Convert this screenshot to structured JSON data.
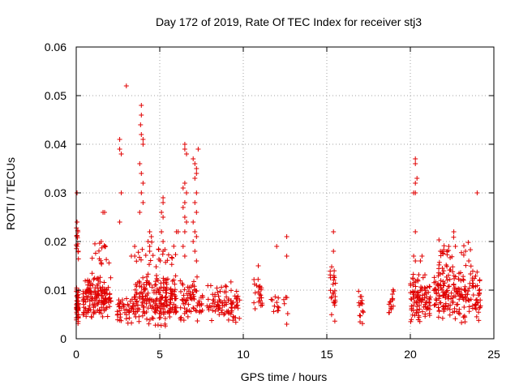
{
  "chart_data": {
    "type": "scatter",
    "title": "Day 172 of 2019, Rate Of TEC Index for receiver stj3",
    "xlabel": "GPS time / hours",
    "ylabel": "ROTI / TECUs",
    "xlim": [
      0,
      25
    ],
    "ylim": [
      0,
      0.06
    ],
    "xticks": [
      "0",
      "5",
      "10",
      "15",
      "20",
      "25"
    ],
    "yticks": [
      "0",
      "0.01",
      "0.02",
      "0.03",
      "0.04",
      "0.05",
      "0.06"
    ],
    "grid": true,
    "marker": "plus",
    "color": "#e00000",
    "clusters": [
      {
        "x_range": [
          0.0,
          0.15
        ],
        "y_range": [
          0.002,
          0.011
        ],
        "count": 45
      },
      {
        "x_range": [
          0.0,
          0.15
        ],
        "y_range": [
          0.013,
          0.025
        ],
        "count": 12
      },
      {
        "x_range": [
          0.4,
          2.1
        ],
        "y_range": [
          0.004,
          0.013
        ],
        "count": 150
      },
      {
        "x_range": [
          0.8,
          2.0
        ],
        "y_range": [
          0.013,
          0.021
        ],
        "count": 15
      },
      {
        "x_range": [
          2.4,
          3.4
        ],
        "y_range": [
          0.003,
          0.009
        ],
        "count": 40
      },
      {
        "x_range": [
          3.4,
          6.0
        ],
        "y_range": [
          0.002,
          0.014
        ],
        "count": 210
      },
      {
        "x_range": [
          3.6,
          6.0
        ],
        "y_range": [
          0.014,
          0.02
        ],
        "count": 25
      },
      {
        "x_range": [
          6.2,
          7.6
        ],
        "y_range": [
          0.003,
          0.013
        ],
        "count": 70
      },
      {
        "x_range": [
          7.8,
          9.8
        ],
        "y_range": [
          0.003,
          0.012
        ],
        "count": 90
      },
      {
        "x_range": [
          10.6,
          11.2
        ],
        "y_range": [
          0.005,
          0.013
        ],
        "count": 22
      },
      {
        "x_range": [
          11.6,
          12.8
        ],
        "y_range": [
          0.004,
          0.011
        ],
        "count": 16
      },
      {
        "x_range": [
          15.2,
          15.6
        ],
        "y_range": [
          0.003,
          0.016
        ],
        "count": 25
      },
      {
        "x_range": [
          16.9,
          17.2
        ],
        "y_range": [
          0.003,
          0.012
        ],
        "count": 16
      },
      {
        "x_range": [
          18.7,
          19.0
        ],
        "y_range": [
          0.003,
          0.012
        ],
        "count": 16
      },
      {
        "x_range": [
          20.0,
          21.2
        ],
        "y_range": [
          0.002,
          0.014
        ],
        "count": 100
      },
      {
        "x_range": [
          21.4,
          24.2
        ],
        "y_range": [
          0.003,
          0.016
        ],
        "count": 200
      },
      {
        "x_range": [
          21.6,
          23.8
        ],
        "y_range": [
          0.014,
          0.022
        ],
        "count": 20
      }
    ],
    "points": [
      [
        0.05,
        0.03
      ],
      [
        0.05,
        0.024
      ],
      [
        0.1,
        0.022
      ],
      [
        0.05,
        0.019
      ],
      [
        1.6,
        0.026
      ],
      [
        1.7,
        0.026
      ],
      [
        1.75,
        0.019
      ],
      [
        1.5,
        0.02
      ],
      [
        2.6,
        0.041
      ],
      [
        2.6,
        0.039
      ],
      [
        2.7,
        0.038
      ],
      [
        2.7,
        0.03
      ],
      [
        2.6,
        0.024
      ],
      [
        3.0,
        0.052
      ],
      [
        3.3,
        0.017
      ],
      [
        3.5,
        0.017
      ],
      [
        3.5,
        0.019
      ],
      [
        3.9,
        0.048
      ],
      [
        3.9,
        0.046
      ],
      [
        3.85,
        0.044
      ],
      [
        3.9,
        0.042
      ],
      [
        4.0,
        0.041
      ],
      [
        4.0,
        0.04
      ],
      [
        3.8,
        0.036
      ],
      [
        3.9,
        0.034
      ],
      [
        4.0,
        0.032
      ],
      [
        3.9,
        0.03
      ],
      [
        4.0,
        0.028
      ],
      [
        3.8,
        0.026
      ],
      [
        4.3,
        0.02
      ],
      [
        4.4,
        0.019
      ],
      [
        4.4,
        0.022
      ],
      [
        4.4,
        0.018
      ],
      [
        4.5,
        0.021
      ],
      [
        4.8,
        0.013
      ],
      [
        4.9,
        0.012
      ],
      [
        5.2,
        0.028
      ],
      [
        5.2,
        0.029
      ],
      [
        5.1,
        0.026
      ],
      [
        5.2,
        0.025
      ],
      [
        5.1,
        0.022
      ],
      [
        5.2,
        0.02
      ],
      [
        5.2,
        0.018
      ],
      [
        6.0,
        0.022
      ],
      [
        6.1,
        0.022
      ],
      [
        6.5,
        0.04
      ],
      [
        6.5,
        0.039
      ],
      [
        6.6,
        0.038
      ],
      [
        6.4,
        0.031
      ],
      [
        6.5,
        0.032
      ],
      [
        6.6,
        0.03
      ],
      [
        6.5,
        0.028
      ],
      [
        6.4,
        0.027
      ],
      [
        6.5,
        0.025
      ],
      [
        6.6,
        0.024
      ],
      [
        6.5,
        0.022
      ],
      [
        6.4,
        0.019
      ],
      [
        6.5,
        0.017
      ],
      [
        7.0,
        0.037
      ],
      [
        7.1,
        0.036
      ],
      [
        7.2,
        0.035
      ],
      [
        7.2,
        0.034
      ],
      [
        7.3,
        0.039
      ],
      [
        7.1,
        0.033
      ],
      [
        7.2,
        0.03
      ],
      [
        7.1,
        0.028
      ],
      [
        7.2,
        0.026
      ],
      [
        7.0,
        0.024
      ],
      [
        7.1,
        0.022
      ],
      [
        7.2,
        0.021
      ],
      [
        7.0,
        0.02
      ],
      [
        7.1,
        0.018
      ],
      [
        7.2,
        0.016
      ],
      [
        10.9,
        0.015
      ],
      [
        12.0,
        0.019
      ],
      [
        12.6,
        0.021
      ],
      [
        12.6,
        0.017
      ],
      [
        12.6,
        0.003
      ],
      [
        15.4,
        0.022
      ],
      [
        15.4,
        0.018
      ],
      [
        20.3,
        0.037
      ],
      [
        20.3,
        0.036
      ],
      [
        20.4,
        0.033
      ],
      [
        20.3,
        0.032
      ],
      [
        20.2,
        0.03
      ],
      [
        20.3,
        0.03
      ],
      [
        20.3,
        0.022
      ],
      [
        20.2,
        0.017
      ],
      [
        20.3,
        0.016
      ],
      [
        20.7,
        0.017
      ],
      [
        20.6,
        0.016
      ],
      [
        21.8,
        0.018
      ],
      [
        22.3,
        0.019
      ],
      [
        22.6,
        0.022
      ],
      [
        22.7,
        0.019
      ],
      [
        23.3,
        0.018
      ],
      [
        23.5,
        0.016
      ],
      [
        24.0,
        0.03
      ]
    ]
  }
}
